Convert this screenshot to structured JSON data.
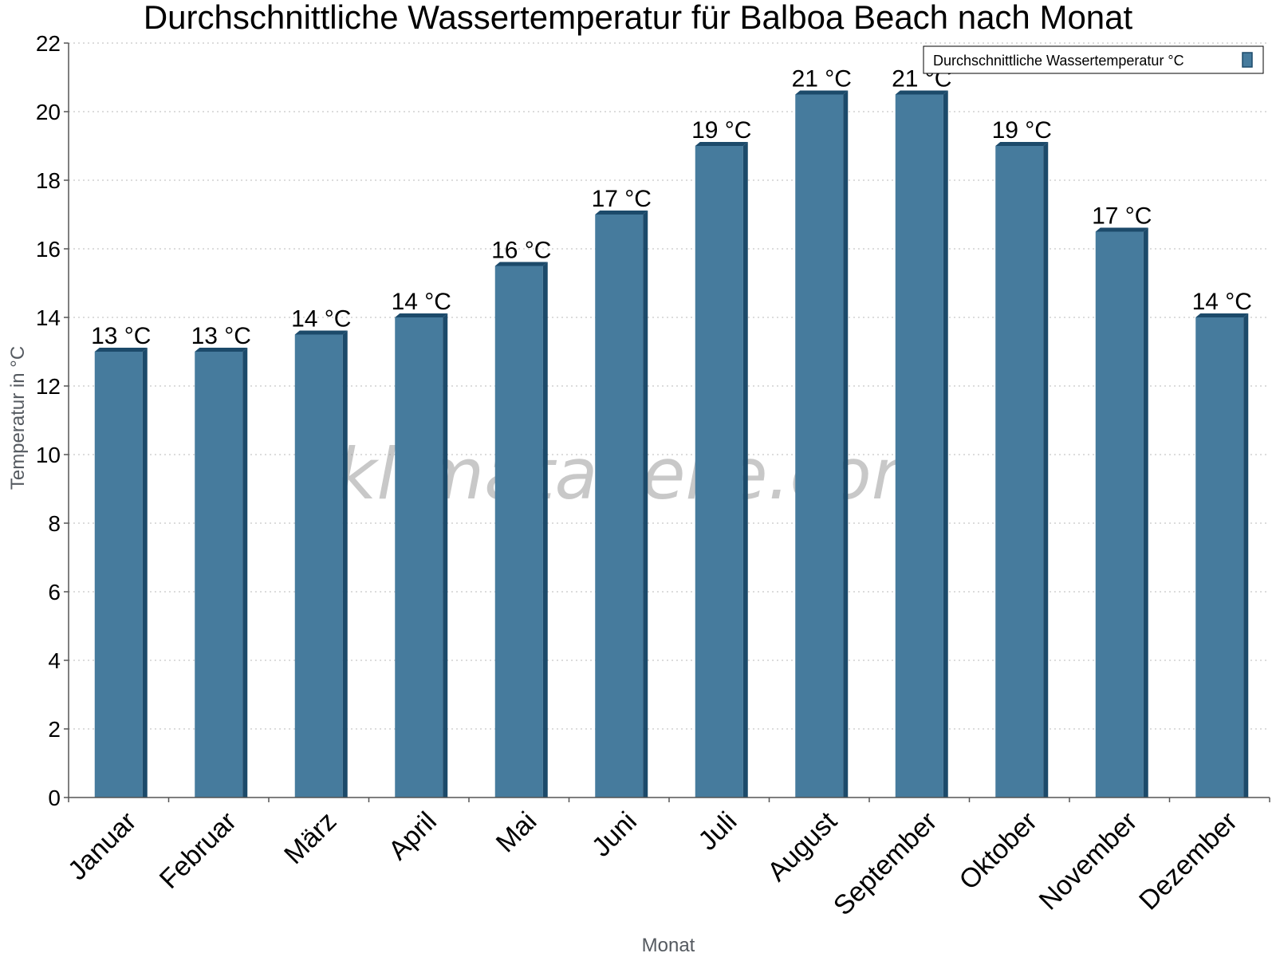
{
  "watermark": "klimatabelle.com",
  "chart_data": {
    "type": "bar",
    "title": "Durchschnittliche Wassertemperatur für Balboa Beach nach Monat",
    "xlabel": "Monat",
    "ylabel": "Temperatur in °C",
    "ylim": [
      0,
      22
    ],
    "yticks": [
      0,
      2,
      4,
      6,
      8,
      10,
      12,
      14,
      16,
      18,
      20,
      22
    ],
    "grid": true,
    "legend_position": "top-right",
    "categories": [
      "Januar",
      "Februar",
      "März",
      "April",
      "Mai",
      "Juni",
      "Juli",
      "August",
      "September",
      "Oktober",
      "November",
      "Dezember"
    ],
    "series": [
      {
        "name": "Durchschnittliche Wassertemperatur °C",
        "color": "#467b9d",
        "values": [
          13,
          13,
          13.5,
          14,
          15.5,
          17,
          19,
          20.5,
          20.5,
          19,
          16.5,
          14
        ],
        "labels": [
          "13 °C",
          "13 °C",
          "14 °C",
          "14 °C",
          "16 °C",
          "17 °C",
          "19 °C",
          "21 °C",
          "21 °C",
          "19 °C",
          "17 °C",
          "14 °C"
        ]
      }
    ]
  }
}
